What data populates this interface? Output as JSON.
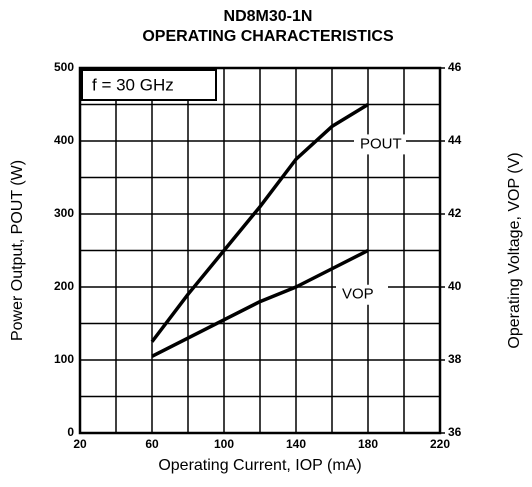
{
  "chart_data": {
    "type": "line",
    "title": [
      "ND8M30-1N",
      "OPERATING CHARACTERISTICS"
    ],
    "xlabel": "Operating Current, IOP (mA)",
    "ylabel": "Power Output, POUT (W)",
    "y2label": "Operating Voltage, VOP (V)",
    "annotation": "f = 30 GHz",
    "x": [
      60,
      80,
      100,
      120,
      140,
      160,
      180
    ],
    "series": [
      {
        "name": "POUT",
        "color": "#000000",
        "values": [
          125,
          190,
          250,
          310,
          375,
          420,
          450
        ]
      },
      {
        "name": "VOP",
        "color": "#000000",
        "axis": "y2",
        "values": [
          38.1,
          38.6,
          39.1,
          39.6,
          40.0,
          40.5,
          41.0
        ]
      }
    ],
    "xlim": [
      20,
      220
    ],
    "xticks": [
      20,
      60,
      100,
      140,
      180,
      220
    ],
    "xminor": [
      40,
      80,
      120,
      160,
      200
    ],
    "ylim": [
      0,
      500
    ],
    "yticks": [
      0,
      100,
      200,
      300,
      400,
      500
    ],
    "yminor": [
      50,
      150,
      250,
      350,
      450
    ],
    "y2lim": [
      36,
      46
    ],
    "y2ticks": [
      36,
      38,
      40,
      42,
      44,
      46
    ],
    "grid": true
  }
}
